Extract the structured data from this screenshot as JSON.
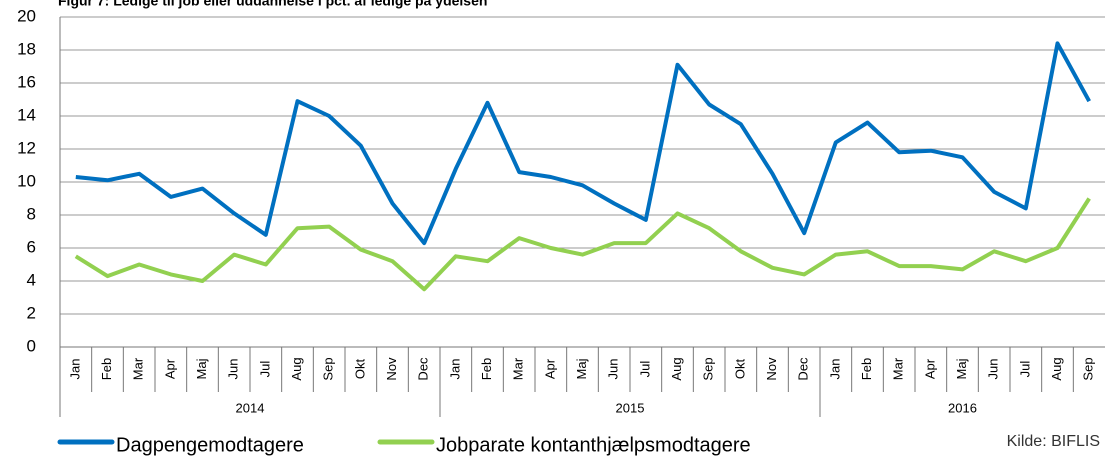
{
  "chart_data": {
    "type": "line",
    "title": "Figur 7: Ledige til job eller uddannelse i pct. af ledige på ydelsen",
    "categories": [
      "Jan",
      "Feb",
      "Mar",
      "Apr",
      "Maj",
      "Jun",
      "Jul",
      "Aug",
      "Sep",
      "Okt",
      "Nov",
      "Dec",
      "Jan",
      "Feb",
      "Mar",
      "Apr",
      "Maj",
      "Jun",
      "Jul",
      "Aug",
      "Sep",
      "Okt",
      "Nov",
      "Dec",
      "Jan",
      "Feb",
      "Mar",
      "Apr",
      "Maj",
      "Jun",
      "Jul",
      "Aug",
      "Sep"
    ],
    "groups": [
      {
        "label": "2014",
        "size": 12
      },
      {
        "label": "2015",
        "size": 12
      },
      {
        "label": "2016",
        "size": 9
      }
    ],
    "series": [
      {
        "name": "Dagpengemodtagere",
        "color": "#0070c0",
        "values": [
          10.3,
          10.1,
          10.5,
          9.1,
          9.6,
          8.1,
          6.8,
          14.9,
          14.0,
          12.2,
          8.7,
          6.3,
          10.8,
          14.8,
          10.6,
          10.3,
          9.8,
          8.7,
          7.7,
          17.1,
          14.7,
          13.5,
          10.5,
          6.9,
          12.4,
          13.6,
          11.8,
          11.9,
          11.5,
          9.4,
          8.4,
          18.4,
          14.9
        ]
      },
      {
        "name": "Jobparate kontanthjælpsmodtagere",
        "color": "#92d050",
        "values": [
          5.5,
          4.3,
          5.0,
          4.4,
          4.0,
          5.6,
          5.0,
          7.2,
          7.3,
          5.9,
          5.2,
          3.5,
          5.5,
          5.2,
          6.6,
          6.0,
          5.6,
          6.3,
          6.3,
          8.1,
          7.2,
          5.8,
          4.8,
          4.4,
          5.6,
          5.8,
          4.9,
          4.9,
          4.7,
          5.8,
          5.2,
          6.0,
          9.0
        ]
      }
    ],
    "ylim": [
      0,
      20
    ],
    "yticks": [
      0,
      2,
      4,
      6,
      8,
      10,
      12,
      14,
      16,
      18,
      20
    ],
    "grid": true,
    "source": "Kilde: BIFLIS"
  }
}
